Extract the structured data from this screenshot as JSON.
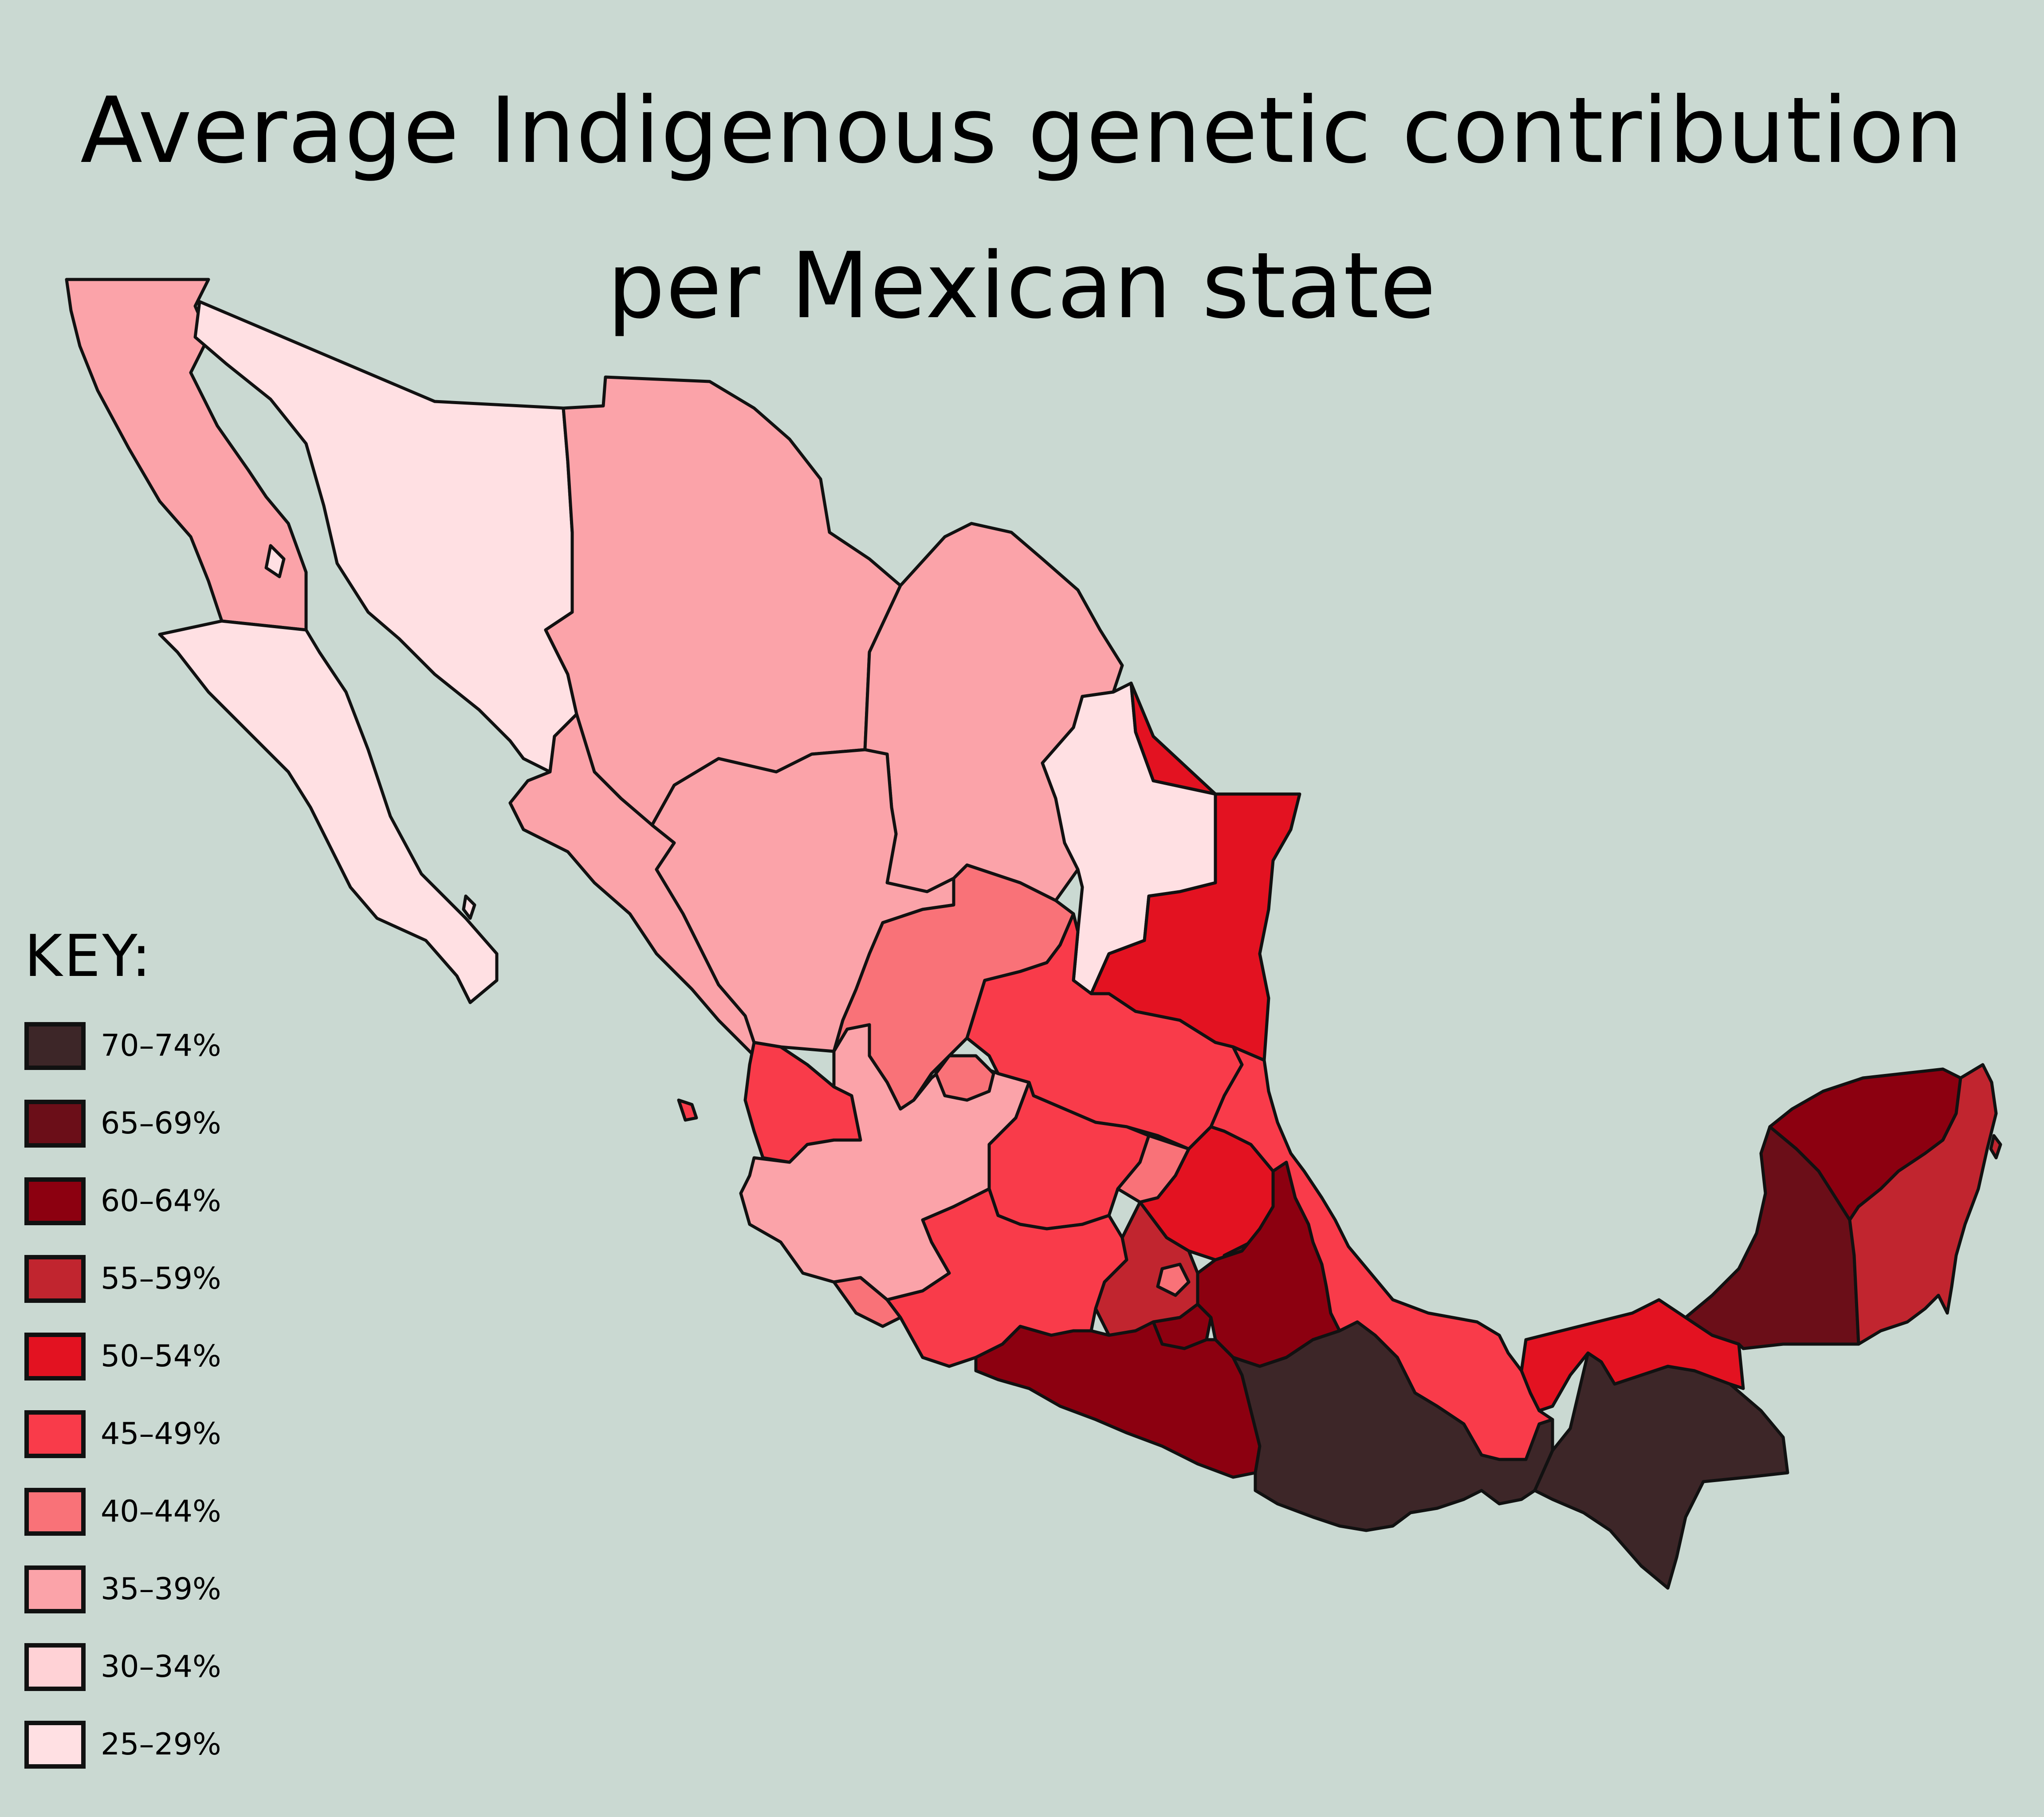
{
  "title_line1": "Average Indigenous genetic contribution",
  "title_line2": "per Mexican state",
  "legend": {
    "title": "KEY:",
    "items": [
      {
        "label": "70–74%",
        "color": "#3d2628"
      },
      {
        "label": "65–69%",
        "color": "#6b0e18"
      },
      {
        "label": "60–64%",
        "color": "#8c0010"
      },
      {
        "label": "55–59%",
        "color": "#c1252f"
      },
      {
        "label": "50–54%",
        "color": "#e31221"
      },
      {
        "label": "45–49%",
        "color": "#f93b4a"
      },
      {
        "label": "40–44%",
        "color": "#f97278"
      },
      {
        "label": "35–39%",
        "color": "#fba3a9"
      },
      {
        "label": "30–34%",
        "color": "#ffd2d6"
      },
      {
        "label": "25–29%",
        "color": "#ffe0e3"
      }
    ]
  },
  "colors": {
    "background": "#cad9d2",
    "border": "#111111"
  }
}
